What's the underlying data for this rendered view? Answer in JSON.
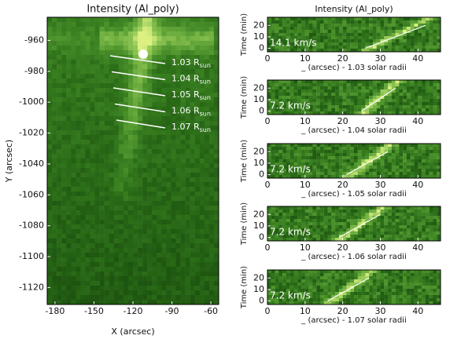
{
  "chart_data": [
    {
      "type": "image",
      "title": "Intensity (Al_poly)",
      "xlabel": "X (arcsec)",
      "ylabel": "Y (arcsec)",
      "xlim": [
        -186,
        -54
      ],
      "xticks": [
        -180,
        -150,
        -120,
        -90,
        -60
      ],
      "ylim": [
        -1131,
        -945
      ],
      "yticks": [
        -960,
        -980,
        -1000,
        -1020,
        -1040,
        -1060,
        -1080,
        -1100,
        -1120
      ],
      "annotations": [
        {
          "text": "1.03 R",
          "sub": "sun"
        },
        {
          "text": "1.04 R",
          "sub": "sun"
        },
        {
          "text": "1.05 R",
          "sub": "sun"
        },
        {
          "text": "1.06 R",
          "sub": "sun"
        },
        {
          "text": "1.07 R",
          "sub": "sun"
        }
      ]
    },
    {
      "type": "timeslice",
      "title": "Intensity (Al_poly)",
      "xlabel": "_ (arcsec) - 1.03 solar radii",
      "ylabel": "Time (min)",
      "speed": "14.1 km/s",
      "xlim": [
        0,
        46
      ],
      "xticks": [
        0,
        10,
        20,
        30,
        40
      ],
      "ylim": [
        -3,
        27
      ],
      "yticks": [
        0,
        10,
        20
      ]
    },
    {
      "type": "timeslice",
      "xlabel": "_ (arcsec) - 1.04 solar radii",
      "ylabel": "Time (min)",
      "speed": "7.2 km/s",
      "xlim": [
        0,
        46
      ],
      "xticks": [
        0,
        10,
        20,
        30,
        40
      ],
      "ylim": [
        -3,
        27
      ],
      "yticks": [
        0,
        10,
        20
      ]
    },
    {
      "type": "timeslice",
      "xlabel": "_ (arcsec) - 1.05 solar radii",
      "ylabel": "Time (min)",
      "speed": "7.2 km/s",
      "xlim": [
        0,
        46
      ],
      "xticks": [
        0,
        10,
        20,
        30,
        40
      ],
      "ylim": [
        -3,
        27
      ],
      "yticks": [
        0,
        10,
        20
      ]
    },
    {
      "type": "timeslice",
      "xlabel": "_ (arcsec) - 1.06 solar radii",
      "ylabel": "Time (min)",
      "speed": "7.2 km/s",
      "xlim": [
        0,
        46
      ],
      "xticks": [
        0,
        10,
        20,
        30,
        40
      ],
      "ylim": [
        -3,
        27
      ],
      "yticks": [
        0,
        10,
        20
      ]
    },
    {
      "type": "timeslice",
      "xlabel": "_ (arcsec) - 1.07 solar radii",
      "ylabel": "Time (min)",
      "speed": "7.2 km/s",
      "xlim": [
        0,
        46
      ],
      "xticks": [
        0,
        10,
        20,
        30,
        40
      ],
      "ylim": [
        -3,
        27
      ],
      "yticks": [
        0,
        10,
        20
      ]
    }
  ]
}
